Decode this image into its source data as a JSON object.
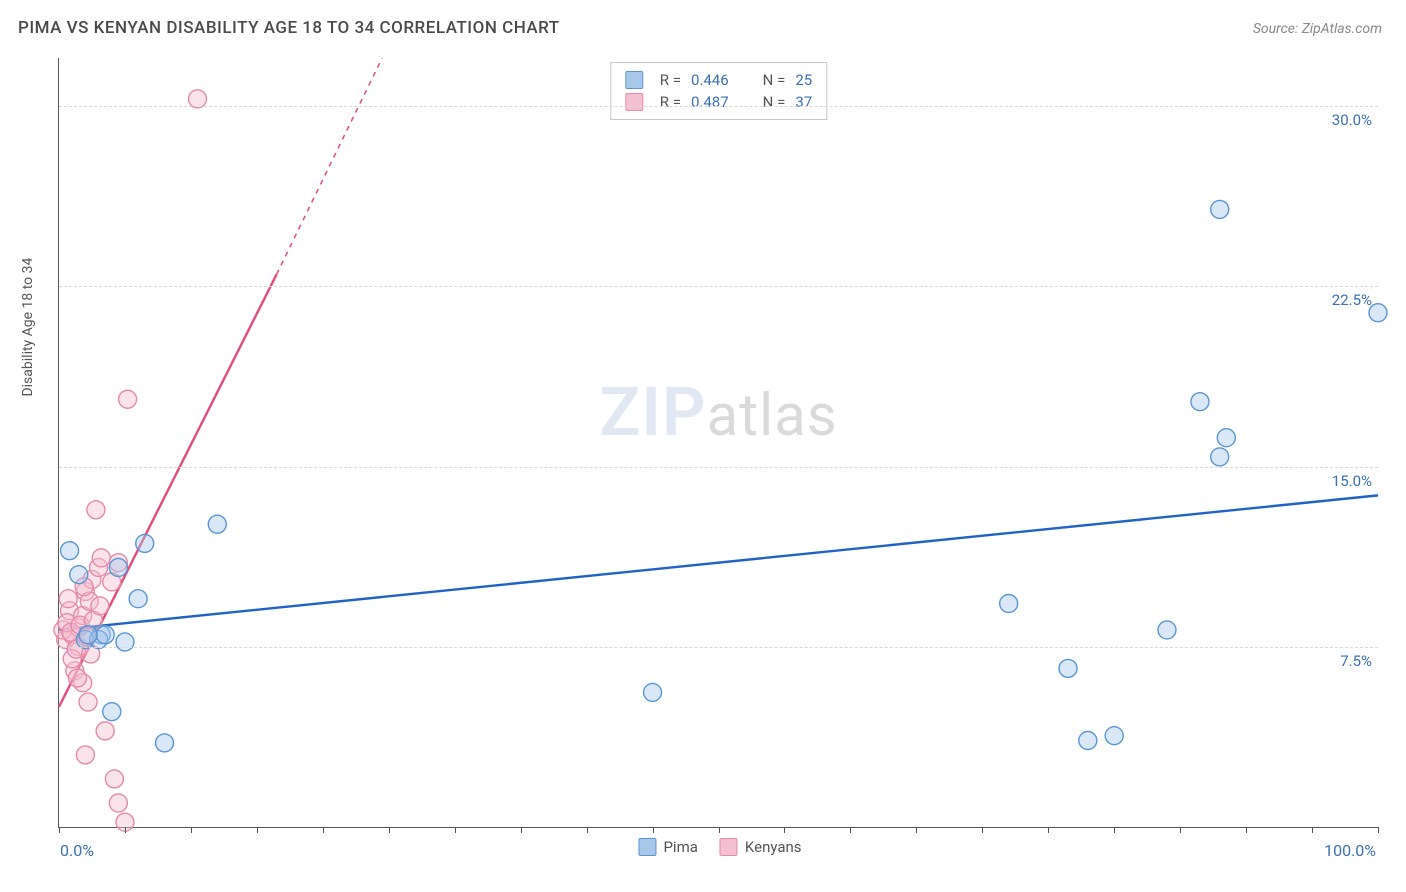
{
  "header": {
    "title": "PIMA VS KENYAN DISABILITY AGE 18 TO 34 CORRELATION CHART",
    "source": "Source: ZipAtlas.com"
  },
  "chart": {
    "type": "scatter",
    "y_axis_label": "Disability Age 18 to 34",
    "xlim": [
      0,
      100
    ],
    "ylim": [
      0,
      32
    ],
    "x_ticks_minor_step": 5,
    "y_gridlines": [
      7.5,
      15.0,
      22.5,
      30.0
    ],
    "y_tick_labels": [
      "7.5%",
      "15.0%",
      "22.5%",
      "30.0%"
    ],
    "x_tick_labels": {
      "min": "0.0%",
      "max": "100.0%"
    },
    "background_color": "#ffffff",
    "grid_color": "#d8d8d8",
    "axis_color": "#555555",
    "marker_radius": 9,
    "marker_stroke_width": 1.4,
    "marker_fill_opacity": 0.18,
    "trend_line_width": 2.4,
    "watermark": {
      "zip": "ZIP",
      "atlas": "atlas"
    },
    "series": {
      "pima": {
        "label": "Pima",
        "color_stroke": "#5a96d6",
        "color_fill": "#a8c8ea",
        "line_color": "#1f63c7",
        "r": 0.446,
        "n": 25,
        "trend": {
          "x1": 0,
          "y1": 8.2,
          "x2": 100,
          "y2": 13.8
        },
        "points": [
          {
            "x": 2.0,
            "y": 7.8
          },
          {
            "x": 3.2,
            "y": 8.0
          },
          {
            "x": 1.5,
            "y": 10.5
          },
          {
            "x": 0.8,
            "y": 11.5
          },
          {
            "x": 4.5,
            "y": 10.8
          },
          {
            "x": 6.0,
            "y": 9.5
          },
          {
            "x": 3.0,
            "y": 7.8
          },
          {
            "x": 4.0,
            "y": 4.8
          },
          {
            "x": 8.0,
            "y": 3.5
          },
          {
            "x": 12.0,
            "y": 12.6
          },
          {
            "x": 6.5,
            "y": 11.8
          },
          {
            "x": 3.5,
            "y": 8.0
          },
          {
            "x": 45.0,
            "y": 5.6
          },
          {
            "x": 72.0,
            "y": 9.3
          },
          {
            "x": 76.5,
            "y": 6.6
          },
          {
            "x": 80.0,
            "y": 3.8
          },
          {
            "x": 84.0,
            "y": 8.2
          },
          {
            "x": 86.5,
            "y": 17.7
          },
          {
            "x": 88.5,
            "y": 16.2
          },
          {
            "x": 88.0,
            "y": 15.4
          },
          {
            "x": 88.0,
            "y": 25.7
          },
          {
            "x": 100.0,
            "y": 21.4
          },
          {
            "x": 78.0,
            "y": 3.6
          },
          {
            "x": 2.2,
            "y": 8.0
          },
          {
            "x": 5.0,
            "y": 7.7
          }
        ]
      },
      "kenyans": {
        "label": "Kenyans",
        "color_stroke": "#e68aa6",
        "color_fill": "#f4bfd0",
        "line_color": "#e34b7a",
        "r": 0.487,
        "n": 37,
        "trend": {
          "x1": 0,
          "y1": 5.0,
          "x2": 16.5,
          "y2": 23.0
        },
        "trend_dashed_ext": {
          "x1": 16.5,
          "y1": 23.0,
          "x2": 24.5,
          "y2": 32.0
        },
        "points": [
          {
            "x": 0.5,
            "y": 7.8
          },
          {
            "x": 1.0,
            "y": 8.0
          },
          {
            "x": 1.5,
            "y": 8.3
          },
          {
            "x": 0.8,
            "y": 9.0
          },
          {
            "x": 2.0,
            "y": 9.8
          },
          {
            "x": 2.5,
            "y": 10.3
          },
          {
            "x": 3.0,
            "y": 10.8
          },
          {
            "x": 1.2,
            "y": 6.5
          },
          {
            "x": 1.8,
            "y": 6.0
          },
          {
            "x": 2.2,
            "y": 5.2
          },
          {
            "x": 3.5,
            "y": 4.0
          },
          {
            "x": 2.0,
            "y": 3.0
          },
          {
            "x": 4.5,
            "y": 1.0
          },
          {
            "x": 5.0,
            "y": 0.2
          },
          {
            "x": 1.5,
            "y": 7.5
          },
          {
            "x": 0.3,
            "y": 8.2
          },
          {
            "x": 0.6,
            "y": 8.5
          },
          {
            "x": 1.8,
            "y": 8.8
          },
          {
            "x": 2.3,
            "y": 9.4
          },
          {
            "x": 3.2,
            "y": 11.2
          },
          {
            "x": 4.0,
            "y": 10.2
          },
          {
            "x": 4.5,
            "y": 11.0
          },
          {
            "x": 2.8,
            "y": 13.2
          },
          {
            "x": 5.2,
            "y": 17.8
          },
          {
            "x": 10.5,
            "y": 30.3
          },
          {
            "x": 1.0,
            "y": 7.0
          },
          {
            "x": 1.3,
            "y": 7.4
          },
          {
            "x": 0.9,
            "y": 8.1
          },
          {
            "x": 1.6,
            "y": 8.4
          },
          {
            "x": 2.1,
            "y": 7.9
          },
          {
            "x": 0.7,
            "y": 9.5
          },
          {
            "x": 1.9,
            "y": 10.0
          },
          {
            "x": 2.6,
            "y": 8.6
          },
          {
            "x": 3.1,
            "y": 9.2
          },
          {
            "x": 1.4,
            "y": 6.2
          },
          {
            "x": 2.4,
            "y": 7.2
          },
          {
            "x": 4.2,
            "y": 2.0
          }
        ]
      }
    },
    "stats_labels": {
      "r": "R =",
      "n": "N ="
    },
    "legend_order": [
      "pima",
      "kenyans"
    ]
  }
}
